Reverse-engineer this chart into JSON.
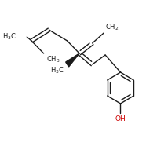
{
  "background": "#ffffff",
  "bond_color": "#1a1a1a",
  "oh_color": "#cc0000",
  "label_color": "#1a1a1a",
  "fig_size": [
    2.0,
    2.0
  ],
  "dpi": 100
}
